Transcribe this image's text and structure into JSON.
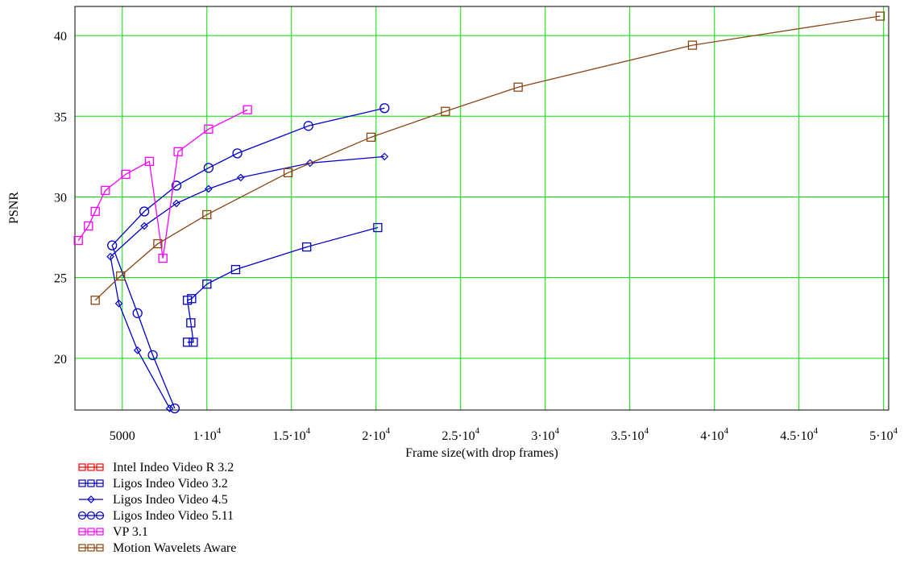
{
  "chart_data": {
    "type": "line",
    "xlabel": "Frame size(with drop frames)",
    "ylabel": "PSNR",
    "xlim": [
      2200,
      50300
    ],
    "ylim": [
      16.8,
      41.8
    ],
    "grid": true,
    "legend_position": "bottom-left, below the plot",
    "x_ticks": [
      {
        "value": 5000,
        "mantissa": "5000",
        "exp": ""
      },
      {
        "value": 10000,
        "mantissa": "1·10",
        "exp": "4"
      },
      {
        "value": 15000,
        "mantissa": "1.5·10",
        "exp": "4"
      },
      {
        "value": 20000,
        "mantissa": "2·10",
        "exp": "4"
      },
      {
        "value": 25000,
        "mantissa": "2.5·10",
        "exp": "4"
      },
      {
        "value": 30000,
        "mantissa": "3·10",
        "exp": "4"
      },
      {
        "value": 35000,
        "mantissa": "3.5·10",
        "exp": "4"
      },
      {
        "value": 40000,
        "mantissa": "4·10",
        "exp": "4"
      },
      {
        "value": 45000,
        "mantissa": "4.5·10",
        "exp": "4"
      },
      {
        "value": 50000,
        "mantissa": "5·10",
        "exp": "4"
      }
    ],
    "y_ticks": [
      20,
      25,
      30,
      35,
      40
    ],
    "series": [
      {
        "name": "Intel Indeo Video R 3.2",
        "color": "#ff0000",
        "marker": "square",
        "x": [],
        "y": []
      },
      {
        "name": "Ligos Indeo Video 3.2",
        "color": "#0000cc",
        "marker": "square",
        "x": [
          8850,
          9200,
          9050,
          8850,
          9100,
          10000,
          11700,
          15900,
          20100
        ],
        "y": [
          21.0,
          21.0,
          22.2,
          23.6,
          23.7,
          24.6,
          25.5,
          26.9,
          28.1
        ]
      },
      {
        "name": "Ligos Indeo Video 4.5",
        "color": "#0000cc",
        "marker": "diamond",
        "x": [
          7800,
          5900,
          4800,
          4300,
          6300,
          8200,
          10100,
          12000,
          16100,
          20500
        ],
        "y": [
          16.9,
          20.5,
          23.4,
          26.3,
          28.2,
          29.6,
          30.5,
          31.2,
          32.1,
          32.5
        ]
      },
      {
        "name": "Ligos Indeo Video 5.11",
        "color": "#0000cc",
        "marker": "circle",
        "x": [
          8100,
          6800,
          5900,
          4400,
          6300,
          8200,
          10100,
          11800,
          16000,
          20500
        ],
        "y": [
          16.9,
          20.2,
          22.8,
          27.0,
          29.1,
          30.7,
          31.8,
          32.7,
          34.4,
          35.5
        ]
      },
      {
        "name": "VP 3.1",
        "color": "#ff00ff",
        "marker": "square",
        "x": [
          2400,
          3000,
          3400,
          4000,
          5200,
          6600,
          7400,
          8300,
          10100,
          12400
        ],
        "y": [
          27.3,
          28.2,
          29.1,
          30.4,
          31.4,
          32.2,
          26.2,
          32.8,
          34.2,
          35.4
        ]
      },
      {
        "name": "Motion Wavelets Aware",
        "color": "#8b4513",
        "marker": "square",
        "x": [
          3400,
          4900,
          7100,
          10000,
          14800,
          19700,
          24100,
          28400,
          38700,
          49800
        ],
        "y": [
          23.6,
          25.1,
          27.1,
          28.9,
          31.5,
          33.7,
          35.3,
          36.8,
          39.4,
          41.2
        ]
      }
    ]
  },
  "colors": {
    "grid": "#00dd00",
    "frame": "#000000"
  }
}
